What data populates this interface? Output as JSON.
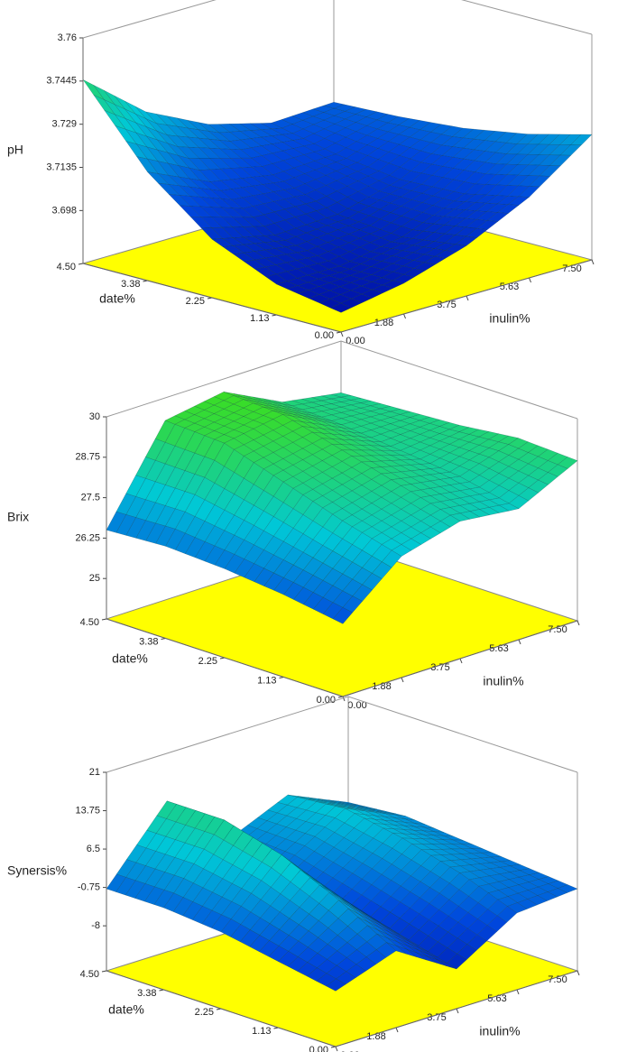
{
  "chart_data": [
    {
      "type": "surface",
      "zlabel": "pH",
      "xlabel": "date%",
      "ylabel": "inulin%",
      "x": [
        0,
        1.125,
        2.25,
        3.375,
        4.5
      ],
      "y": [
        0,
        1.875,
        3.75,
        5.625,
        7.5
      ],
      "z": [
        [
          3.686,
          3.69,
          3.697,
          3.708,
          3.724
        ],
        [
          3.69,
          3.69,
          3.694,
          3.703,
          3.718
        ],
        [
          3.7,
          3.695,
          3.696,
          3.702,
          3.714
        ],
        [
          3.718,
          3.708,
          3.704,
          3.705,
          3.712
        ],
        [
          3.745,
          3.727,
          3.716,
          3.71,
          3.711
        ]
      ],
      "xlim": [
        0,
        4.5
      ],
      "xticks": [
        {
          "value": 0,
          "label": "0.00"
        },
        {
          "value": 1.125,
          "label": "1.13"
        },
        {
          "value": 2.25,
          "label": "2.25"
        },
        {
          "value": 3.375,
          "label": "3.38"
        },
        {
          "value": 4.5,
          "label": "4.50"
        }
      ],
      "ylim": [
        0,
        7.5
      ],
      "yticks": [
        {
          "value": 0,
          "label": "0.00"
        },
        {
          "value": 1.875,
          "label": "1.88"
        },
        {
          "value": 3.75,
          "label": "3.75"
        },
        {
          "value": 5.625,
          "label": "5.63"
        },
        {
          "value": 7.5,
          "label": "7.50"
        }
      ],
      "zlim": [
        3.679,
        3.76
      ],
      "zticks": [
        3.698,
        3.7135,
        3.729,
        3.7445,
        3.76
      ]
    },
    {
      "type": "surface",
      "zlabel": "Brix",
      "xlabel": "date%",
      "ylabel": "inulin%",
      "x": [
        0,
        1.125,
        2.25,
        3.375,
        4.5
      ],
      "y": [
        0,
        1.875,
        3.75,
        5.625,
        7.5
      ],
      "z": [
        [
          26.0,
          27.5,
          28.0,
          27.8,
          28.7
        ],
        [
          26.3,
          28.0,
          28.5,
          28.2,
          28.8
        ],
        [
          26.5,
          28.6,
          29.0,
          28.4,
          28.6
        ],
        [
          26.6,
          29.2,
          29.5,
          28.6,
          28.5
        ],
        [
          26.5,
          29.3,
          29.6,
          28.7,
          28.4
        ]
      ],
      "xlim": [
        0,
        4.5
      ],
      "xticks": [
        {
          "value": 0,
          "label": "0.00"
        },
        {
          "value": 1.125,
          "label": "1.13"
        },
        {
          "value": 2.25,
          "label": "2.25"
        },
        {
          "value": 3.375,
          "label": "3.38"
        },
        {
          "value": 4.5,
          "label": "4.50"
        }
      ],
      "ylim": [
        0,
        7.5
      ],
      "yticks": [
        {
          "value": 0,
          "label": "0.00"
        },
        {
          "value": 1.875,
          "label": "1.88"
        },
        {
          "value": 3.75,
          "label": "3.75"
        },
        {
          "value": 5.625,
          "label": "5.63"
        },
        {
          "value": 7.5,
          "label": "7.50"
        }
      ],
      "zlim": [
        23.75,
        30
      ],
      "zticks": [
        25,
        26.25,
        27.5,
        28.75,
        30
      ]
    },
    {
      "type": "surface",
      "zlabel": "Synersis%",
      "xlabel": "date%",
      "ylabel": "inulin%",
      "x": [
        0,
        1.125,
        2.25,
        3.375,
        4.5
      ],
      "y": [
        0,
        1.875,
        3.75,
        5.625,
        7.5
      ],
      "z": [
        [
          -6,
          -2,
          -9,
          -2,
          -1
        ],
        [
          -4,
          4,
          -6,
          2,
          0
        ],
        [
          -2,
          9,
          -3,
          5,
          1
        ],
        [
          -1,
          12,
          0,
          7,
          2
        ],
        [
          -1,
          12,
          1,
          6,
          1
        ]
      ],
      "xlim": [
        0,
        4.5
      ],
      "xticks": [
        {
          "value": 0,
          "label": "0.00"
        },
        {
          "value": 1.125,
          "label": "1.13"
        },
        {
          "value": 2.25,
          "label": "2.25"
        },
        {
          "value": 3.375,
          "label": "3.38"
        },
        {
          "value": 4.5,
          "label": "4.50"
        }
      ],
      "ylim": [
        0,
        7.5
      ],
      "yticks": [
        {
          "value": 0,
          "label": "0.00"
        },
        {
          "value": 1.875,
          "label": "1.88"
        },
        {
          "value": 3.75,
          "label": "3.75"
        },
        {
          "value": 5.625,
          "label": "5.63"
        },
        {
          "value": 7.5,
          "label": "7.50"
        }
      ],
      "zlim": [
        -16.5,
        21
      ],
      "zticks": [
        -8,
        -0.75,
        6.5,
        13.75,
        21
      ]
    }
  ]
}
